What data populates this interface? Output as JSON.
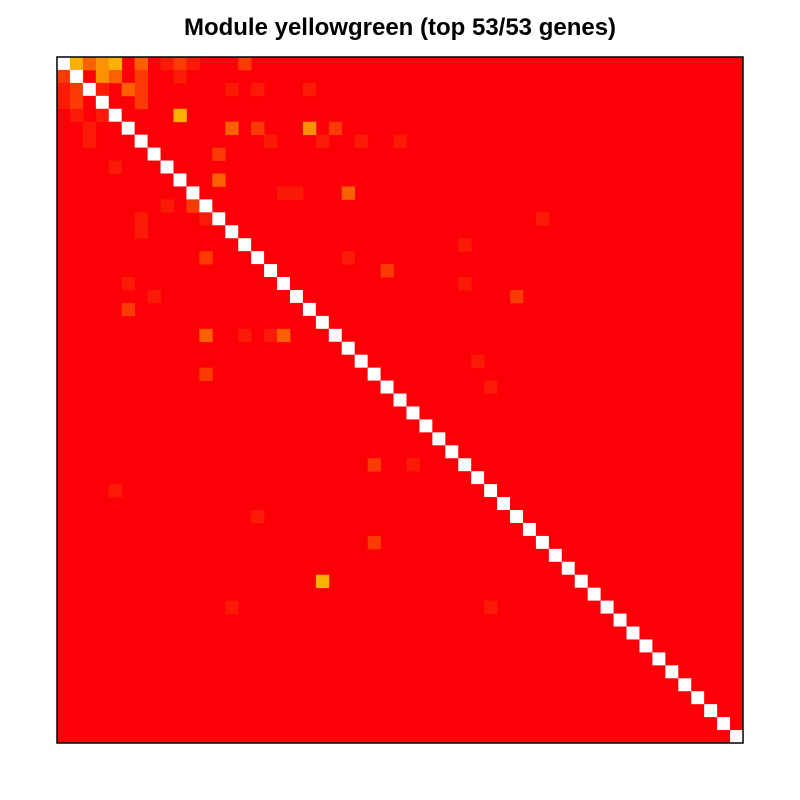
{
  "chart_data": {
    "type": "heatmap",
    "title": "Module yellowgreen (top 53/53 genes)",
    "n_genes": 53,
    "diagonal_color": "#FFFFFF",
    "background_color": "#FB0007",
    "frame_color": "#000000",
    "palette": {
      "1": "#FB1A05",
      "2": "#FB3A04",
      "3": "#FB6103",
      "4": "#FB9203",
      "5": "#FBB003"
    },
    "cells": [
      [
        0,
        1,
        5
      ],
      [
        0,
        2,
        3
      ],
      [
        0,
        3,
        4
      ],
      [
        0,
        4,
        5
      ],
      [
        0,
        6,
        3
      ],
      [
        0,
        8,
        1
      ],
      [
        0,
        9,
        2
      ],
      [
        0,
        10,
        1
      ],
      [
        0,
        14,
        2
      ],
      [
        1,
        0,
        2
      ],
      [
        1,
        1,
        4
      ],
      [
        1,
        3,
        4
      ],
      [
        1,
        4,
        3
      ],
      [
        1,
        6,
        2
      ],
      [
        1,
        9,
        1
      ],
      [
        2,
        0,
        1
      ],
      [
        2,
        1,
        2
      ],
      [
        2,
        3,
        1
      ],
      [
        2,
        5,
        3
      ],
      [
        2,
        6,
        2
      ],
      [
        2,
        13,
        1
      ],
      [
        2,
        15,
        1
      ],
      [
        2,
        19,
        1
      ],
      [
        3,
        0,
        1
      ],
      [
        3,
        1,
        2
      ],
      [
        3,
        6,
        2
      ],
      [
        4,
        1,
        1
      ],
      [
        4,
        3,
        1
      ],
      [
        4,
        9,
        5
      ],
      [
        5,
        2,
        1
      ],
      [
        5,
        13,
        3
      ],
      [
        5,
        15,
        2
      ],
      [
        5,
        19,
        4
      ],
      [
        5,
        21,
        2
      ],
      [
        6,
        2,
        1
      ],
      [
        6,
        16,
        1
      ],
      [
        6,
        20,
        1
      ],
      [
        6,
        23,
        1
      ],
      [
        6,
        26,
        1
      ],
      [
        7,
        12,
        2
      ],
      [
        8,
        4,
        1
      ],
      [
        9,
        12,
        3
      ],
      [
        10,
        17,
        1
      ],
      [
        10,
        18,
        1
      ],
      [
        10,
        22,
        3
      ],
      [
        11,
        8,
        1
      ],
      [
        11,
        10,
        2
      ],
      [
        12,
        6,
        1
      ],
      [
        12,
        11,
        1
      ],
      [
        12,
        37,
        1
      ],
      [
        13,
        6,
        1
      ],
      [
        14,
        31,
        1
      ],
      [
        15,
        11,
        2
      ],
      [
        15,
        22,
        1
      ],
      [
        16,
        25,
        2
      ],
      [
        17,
        5,
        1
      ],
      [
        17,
        31,
        1
      ],
      [
        18,
        7,
        1
      ],
      [
        18,
        35,
        2
      ],
      [
        19,
        5,
        2
      ],
      [
        21,
        11,
        3
      ],
      [
        21,
        14,
        1
      ],
      [
        21,
        16,
        1
      ],
      [
        21,
        17,
        3
      ],
      [
        23,
        32,
        1
      ],
      [
        24,
        11,
        2
      ],
      [
        25,
        33,
        1
      ],
      [
        31,
        24,
        2
      ],
      [
        31,
        27,
        1
      ],
      [
        33,
        4,
        1
      ],
      [
        35,
        15,
        1
      ],
      [
        37,
        24,
        2
      ],
      [
        40,
        20,
        5
      ],
      [
        42,
        13,
        1
      ],
      [
        42,
        33,
        1
      ]
    ]
  }
}
